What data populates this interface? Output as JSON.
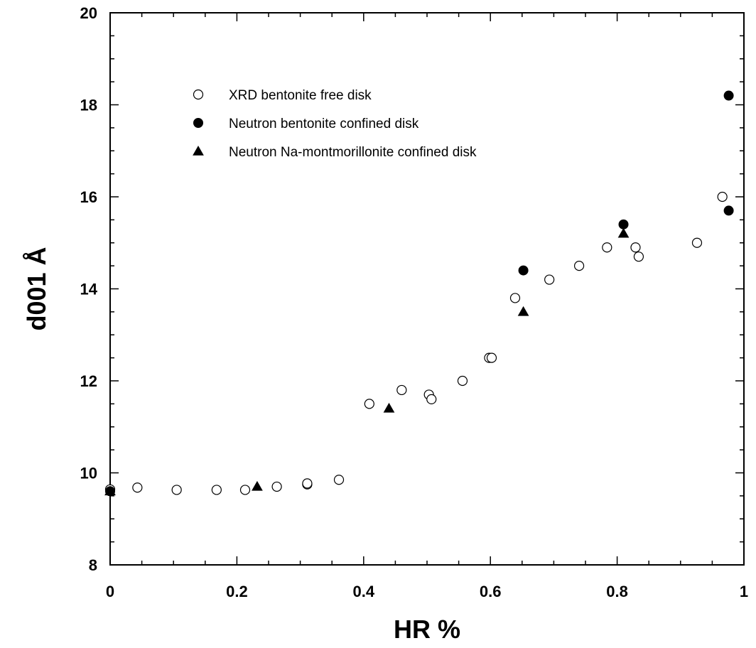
{
  "chart_data": {
    "type": "scatter",
    "title": "",
    "xlabel": "HR %",
    "ylabel": "d001 Å",
    "xlim": [
      0,
      1
    ],
    "ylim": [
      8,
      20
    ],
    "x_ticks": [
      "0",
      "0.2",
      "0.4",
      "0.6",
      "0.8",
      "1"
    ],
    "y_ticks": [
      "8",
      "10",
      "12",
      "14",
      "16",
      "18",
      "20"
    ],
    "grid": false,
    "legend_position": "top-left",
    "series": [
      {
        "name": "XRD bentonite free disk",
        "marker": "open-circle",
        "points": [
          [
            0.0,
            9.64
          ],
          [
            0.043,
            9.68
          ],
          [
            0.105,
            9.63
          ],
          [
            0.168,
            9.63
          ],
          [
            0.213,
            9.63
          ],
          [
            0.263,
            9.7
          ],
          [
            0.311,
            9.75
          ],
          [
            0.311,
            9.77
          ],
          [
            0.361,
            9.85
          ],
          [
            0.409,
            11.5
          ],
          [
            0.46,
            11.8
          ],
          [
            0.503,
            11.7
          ],
          [
            0.507,
            11.6
          ],
          [
            0.556,
            12.0
          ],
          [
            0.598,
            12.5
          ],
          [
            0.602,
            12.5
          ],
          [
            0.639,
            13.8
          ],
          [
            0.693,
            14.2
          ],
          [
            0.74,
            14.5
          ],
          [
            0.784,
            14.9
          ],
          [
            0.829,
            14.9
          ],
          [
            0.834,
            14.7
          ],
          [
            0.926,
            15.0
          ],
          [
            0.966,
            16.0
          ]
        ]
      },
      {
        "name": "Neutron bentonite confined disk",
        "marker": "filled-circle",
        "points": [
          [
            0.0,
            9.6
          ],
          [
            0.652,
            14.4
          ],
          [
            0.81,
            15.4
          ],
          [
            0.976,
            18.2
          ],
          [
            0.976,
            15.7
          ]
        ]
      },
      {
        "name": "Neutron Na-montmorillonite confined disk",
        "marker": "filled-triangle",
        "points": [
          [
            0.0,
            9.6
          ],
          [
            0.232,
            9.7
          ],
          [
            0.44,
            11.4
          ],
          [
            0.652,
            13.5
          ],
          [
            0.81,
            15.2
          ]
        ]
      }
    ]
  }
}
